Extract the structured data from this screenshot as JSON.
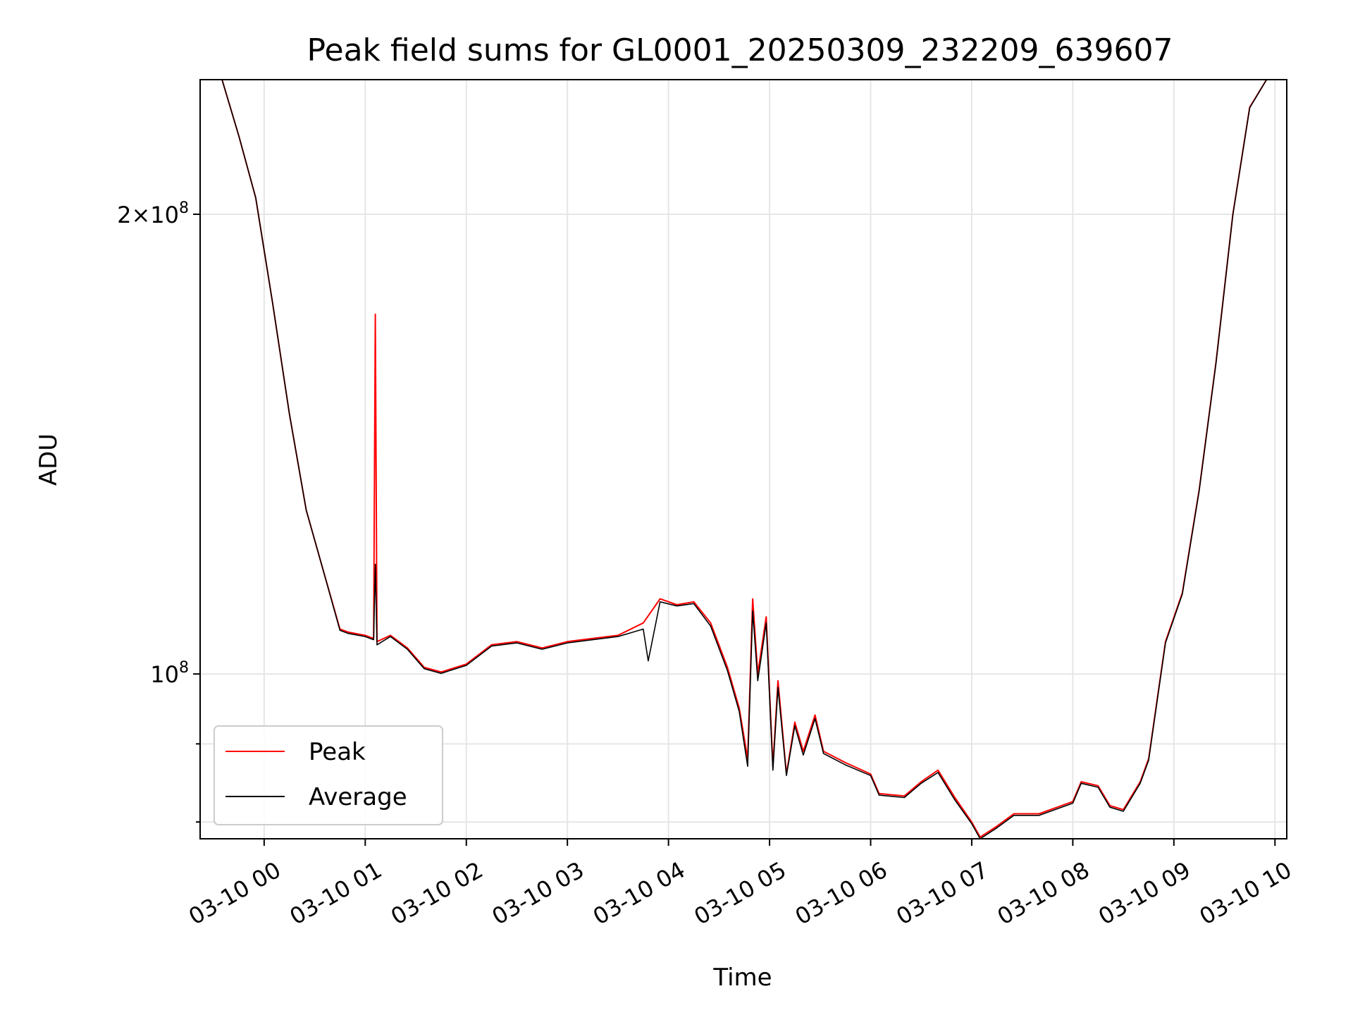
{
  "chart_data": {
    "type": "line",
    "title": "Peak field sums for GL0001_20250309_232209_639607",
    "xlabel": "Time",
    "ylabel": "ADU",
    "y_scale": "log",
    "ylim": [
      78000000,
      245000000
    ],
    "xlim": [
      "03-09 23:22",
      "03-10 10:07"
    ],
    "x_ticks": [
      "03-10 00",
      "03-10 01",
      "03-10 02",
      "03-10 03",
      "03-10 04",
      "03-10 05",
      "03-10 06",
      "03-10 07",
      "03-10 08",
      "03-10 09",
      "03-10 10"
    ],
    "y_ticks": [
      {
        "value": 100000000,
        "base": "10",
        "exp": "8",
        "coef": ""
      },
      {
        "value": 200000000,
        "base": "10",
        "exp": "8",
        "coef": "2"
      }
    ],
    "grid": true,
    "legend_position": "lower-left",
    "series": [
      {
        "name": "Peak",
        "color": "#ff0000",
        "points": [
          [
            "03-09 23:22",
            245000000
          ],
          [
            "03-09 23:35",
            245000000
          ],
          [
            "03-09 23:45",
            225000000
          ],
          [
            "03-09 23:55",
            205000000
          ],
          [
            "03-10 00:05",
            175000000
          ],
          [
            "03-10 00:15",
            148000000
          ],
          [
            "03-10 00:25",
            128000000
          ],
          [
            "03-10 00:35",
            117000000
          ],
          [
            "03-10 00:45",
            107000000
          ],
          [
            "03-10 00:50",
            106500000
          ],
          [
            "03-10 01:00",
            106000000
          ],
          [
            "03-10 01:05",
            105500000
          ],
          [
            "03-10 01:06",
            172000000
          ],
          [
            "03-10 01:07",
            105000000
          ],
          [
            "03-10 01:15",
            106000000
          ],
          [
            "03-10 01:25",
            104000000
          ],
          [
            "03-10 01:35",
            101000000
          ],
          [
            "03-10 01:45",
            100300000
          ],
          [
            "03-10 02:00",
            101500000
          ],
          [
            "03-10 02:15",
            104500000
          ],
          [
            "03-10 02:30",
            105000000
          ],
          [
            "03-10 02:45",
            104000000
          ],
          [
            "03-10 03:00",
            105000000
          ],
          [
            "03-10 03:15",
            105500000
          ],
          [
            "03-10 03:30",
            106000000
          ],
          [
            "03-10 03:45",
            108000000
          ],
          [
            "03-10 03:55",
            112000000
          ],
          [
            "03-10 04:05",
            111000000
          ],
          [
            "03-10 04:15",
            111500000
          ],
          [
            "03-10 04:25",
            108000000
          ],
          [
            "03-10 04:35",
            101000000
          ],
          [
            "03-10 04:42",
            95000000
          ],
          [
            "03-10 04:47",
            88000000
          ],
          [
            "03-10 04:50",
            112000000
          ],
          [
            "03-10 04:53",
            100000000
          ],
          [
            "03-10 04:58",
            109000000
          ],
          [
            "03-10 05:02",
            87000000
          ],
          [
            "03-10 05:05",
            99000000
          ],
          [
            "03-10 05:10",
            86000000
          ],
          [
            "03-10 05:15",
            93000000
          ],
          [
            "03-10 05:20",
            89000000
          ],
          [
            "03-10 05:27",
            94000000
          ],
          [
            "03-10 05:32",
            89000000
          ],
          [
            "03-10 05:45",
            87500000
          ],
          [
            "03-10 06:00",
            86000000
          ],
          [
            "03-10 06:05",
            83500000
          ],
          [
            "03-10 06:20",
            83200000
          ],
          [
            "03-10 06:30",
            85000000
          ],
          [
            "03-10 06:40",
            86500000
          ],
          [
            "03-10 06:50",
            83000000
          ],
          [
            "03-10 07:00",
            80000000
          ],
          [
            "03-10 07:05",
            78200000
          ],
          [
            "03-10 07:15",
            79500000
          ],
          [
            "03-10 07:25",
            81000000
          ],
          [
            "03-10 07:40",
            81000000
          ],
          [
            "03-10 08:00",
            82500000
          ],
          [
            "03-10 08:05",
            85000000
          ],
          [
            "03-10 08:15",
            84500000
          ],
          [
            "03-10 08:22",
            82000000
          ],
          [
            "03-10 08:30",
            81500000
          ],
          [
            "03-10 08:40",
            85000000
          ],
          [
            "03-10 08:45",
            88000000
          ],
          [
            "03-10 08:55",
            105000000
          ],
          [
            "03-10 09:05",
            113000000
          ],
          [
            "03-10 09:15",
            132000000
          ],
          [
            "03-10 09:25",
            160000000
          ],
          [
            "03-10 09:35",
            200000000
          ],
          [
            "03-10 09:45",
            235000000
          ],
          [
            "03-10 09:55",
            245000000
          ],
          [
            "03-10 10:07",
            245000000
          ]
        ]
      },
      {
        "name": "Average",
        "color": "#000000",
        "points": [
          [
            "03-09 23:22",
            245000000
          ],
          [
            "03-09 23:35",
            245000000
          ],
          [
            "03-09 23:45",
            225000000
          ],
          [
            "03-09 23:55",
            205000000
          ],
          [
            "03-10 00:05",
            175000000
          ],
          [
            "03-10 00:15",
            148000000
          ],
          [
            "03-10 00:25",
            128000000
          ],
          [
            "03-10 00:35",
            117000000
          ],
          [
            "03-10 00:45",
            106800000
          ],
          [
            "03-10 00:50",
            106300000
          ],
          [
            "03-10 01:00",
            105800000
          ],
          [
            "03-10 01:05",
            105300000
          ],
          [
            "03-10 01:06",
            118000000
          ],
          [
            "03-10 01:07",
            104500000
          ],
          [
            "03-10 01:15",
            105800000
          ],
          [
            "03-10 01:25",
            103800000
          ],
          [
            "03-10 01:35",
            100800000
          ],
          [
            "03-10 01:45",
            100100000
          ],
          [
            "03-10 02:00",
            101300000
          ],
          [
            "03-10 02:15",
            104300000
          ],
          [
            "03-10 02:30",
            104800000
          ],
          [
            "03-10 02:45",
            103800000
          ],
          [
            "03-10 03:00",
            104800000
          ],
          [
            "03-10 03:15",
            105300000
          ],
          [
            "03-10 03:30",
            105800000
          ],
          [
            "03-10 03:45",
            107000000
          ],
          [
            "03-10 03:48",
            102000000
          ],
          [
            "03-10 03:55",
            111500000
          ],
          [
            "03-10 04:05",
            110800000
          ],
          [
            "03-10 04:15",
            111200000
          ],
          [
            "03-10 04:25",
            107500000
          ],
          [
            "03-10 04:35",
            100500000
          ],
          [
            "03-10 04:42",
            94500000
          ],
          [
            "03-10 04:47",
            87000000
          ],
          [
            "03-10 04:50",
            110000000
          ],
          [
            "03-10 04:53",
            99000000
          ],
          [
            "03-10 04:58",
            108000000
          ],
          [
            "03-10 05:02",
            86500000
          ],
          [
            "03-10 05:05",
            98000000
          ],
          [
            "03-10 05:10",
            85800000
          ],
          [
            "03-10 05:15",
            92500000
          ],
          [
            "03-10 05:20",
            88500000
          ],
          [
            "03-10 05:27",
            93500000
          ],
          [
            "03-10 05:32",
            88700000
          ],
          [
            "03-10 05:45",
            87200000
          ],
          [
            "03-10 06:00",
            85800000
          ],
          [
            "03-10 06:05",
            83300000
          ],
          [
            "03-10 06:20",
            83000000
          ],
          [
            "03-10 06:30",
            84800000
          ],
          [
            "03-10 06:40",
            86200000
          ],
          [
            "03-10 06:50",
            82700000
          ],
          [
            "03-10 07:00",
            79800000
          ],
          [
            "03-10 07:05",
            78000000
          ],
          [
            "03-10 07:15",
            79300000
          ],
          [
            "03-10 07:25",
            80800000
          ],
          [
            "03-10 07:40",
            80800000
          ],
          [
            "03-10 08:00",
            82300000
          ],
          [
            "03-10 08:05",
            84800000
          ],
          [
            "03-10 08:15",
            84300000
          ],
          [
            "03-10 08:22",
            81800000
          ],
          [
            "03-10 08:30",
            81300000
          ],
          [
            "03-10 08:40",
            84800000
          ],
          [
            "03-10 08:45",
            87800000
          ],
          [
            "03-10 08:55",
            104800000
          ],
          [
            "03-10 09:05",
            112800000
          ],
          [
            "03-10 09:15",
            131800000
          ],
          [
            "03-10 09:25",
            159800000
          ],
          [
            "03-10 09:35",
            199800000
          ],
          [
            "03-10 09:45",
            234800000
          ],
          [
            "03-10 09:55",
            245000000
          ],
          [
            "03-10 10:07",
            245000000
          ]
        ]
      }
    ]
  }
}
